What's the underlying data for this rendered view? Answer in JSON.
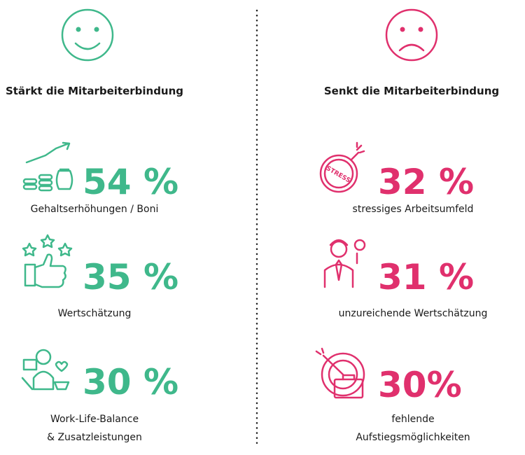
{
  "left": {
    "heading": "Stärkt die Mitarbeiterbindung",
    "items": [
      {
        "value": "54 %",
        "label": [
          "Gehaltserhöhungen / Boni"
        ]
      },
      {
        "value": "35 %",
        "label": [
          "Wertschätzung"
        ]
      },
      {
        "value": "30 %",
        "label": [
          "Work-Life-Balance",
          "& Zusatzleistungen"
        ]
      }
    ]
  },
  "right": {
    "heading": "Senkt die Mitarbeiterbindung",
    "items": [
      {
        "value": "32 %",
        "label": [
          "stressiges Arbeitsumfeld"
        ],
        "icon_text": "STRESS"
      },
      {
        "value": "31 %",
        "label": [
          "unzureichende Wertschätzung"
        ]
      },
      {
        "value": "30%",
        "label": [
          "fehlende",
          "Aufstiegsmöglichkeiten"
        ]
      }
    ]
  }
}
